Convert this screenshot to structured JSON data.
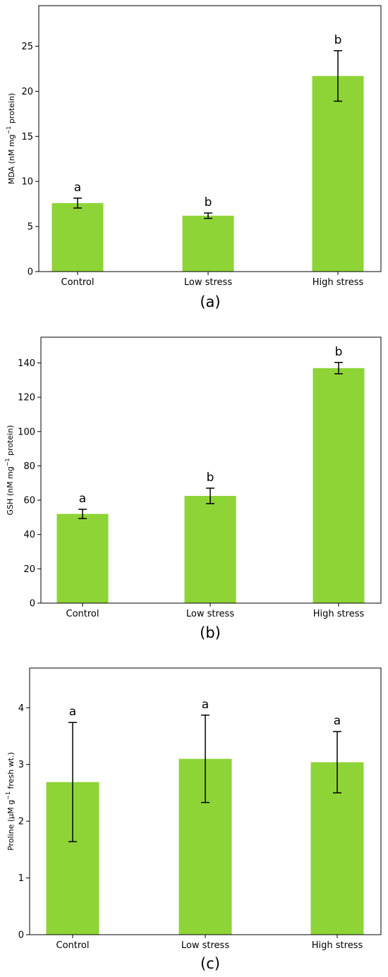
{
  "colors": {
    "bar": "#8fd437",
    "axis": "#000000",
    "error": "#000000"
  },
  "chart_data": [
    {
      "type": "bar",
      "panel_label": "(a)",
      "categories": [
        "Control",
        "Low stress",
        "High stress"
      ],
      "values": [
        7.6,
        6.2,
        21.7
      ],
      "error": [
        0.55,
        0.3,
        2.8
      ],
      "significance": [
        "a",
        "b",
        "b"
      ],
      "ylabel_parts": [
        "MDA (nM mg",
        "−1",
        " protein)"
      ],
      "ylim": [
        0,
        29.5
      ],
      "yticks": [
        0,
        5,
        10,
        15,
        20,
        25
      ],
      "ytick_labels": [
        "0",
        "5",
        "10",
        "15",
        "20",
        "25"
      ],
      "grid": false
    },
    {
      "type": "bar",
      "panel_label": "(b)",
      "categories": [
        "Control",
        "Low stress",
        "High stress"
      ],
      "values": [
        52,
        62.5,
        137
      ],
      "error": [
        2.7,
        4.5,
        3.3
      ],
      "significance": [
        "a",
        "b",
        "b"
      ],
      "ylabel_parts": [
        "GSH (nM mg",
        "−1",
        " protein)"
      ],
      "ylim": [
        0,
        155
      ],
      "yticks": [
        0,
        20,
        40,
        60,
        80,
        100,
        120,
        140
      ],
      "ytick_labels": [
        "0",
        "20",
        "40",
        "60",
        "80",
        "100",
        "120",
        "140"
      ],
      "grid": false
    },
    {
      "type": "bar",
      "panel_label": "(c)",
      "categories": [
        "Control",
        "Low stress",
        "High stress"
      ],
      "values": [
        2.69,
        3.1,
        3.04
      ],
      "error": [
        1.05,
        0.77,
        0.54
      ],
      "significance": [
        "a",
        "a",
        "a"
      ],
      "ylabel_parts": [
        "Proline (μM g",
        "−1",
        " fresh wt.)"
      ],
      "ylim": [
        0,
        4.7
      ],
      "yticks": [
        0,
        1,
        2,
        3,
        4
      ],
      "ytick_labels": [
        "0",
        "1",
        "2",
        "3",
        "4"
      ],
      "grid": false
    }
  ]
}
